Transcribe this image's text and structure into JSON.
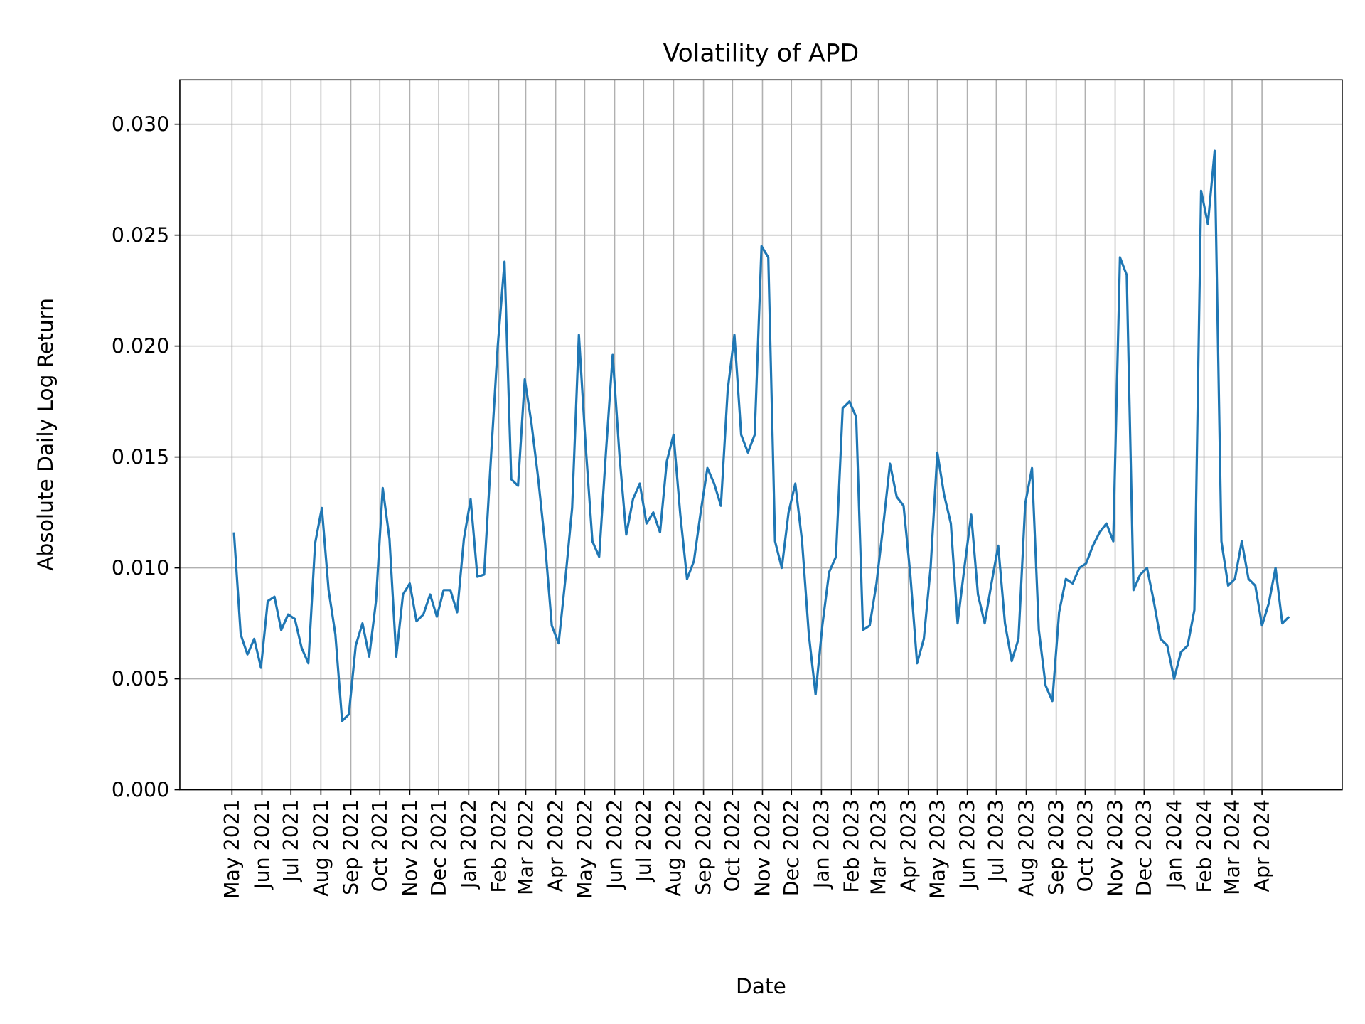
{
  "chart_data": {
    "type": "line",
    "title": "Volatility of APD",
    "xlabel": "Date",
    "ylabel": "Absolute Daily Log Return",
    "ylim": [
      0,
      0.032
    ],
    "xlim": [
      "2021-03-08",
      "2024-06-23"
    ],
    "grid": true,
    "line_color": "#1f77b4",
    "yticks": [
      0.0,
      0.005,
      0.01,
      0.015,
      0.02,
      0.025,
      0.03
    ],
    "ytick_labels": [
      "0.000",
      "0.005",
      "0.010",
      "0.015",
      "0.020",
      "0.025",
      "0.030"
    ],
    "xticks": [
      "2021-05-01",
      "2021-06-01",
      "2021-07-01",
      "2021-08-01",
      "2021-09-01",
      "2021-10-01",
      "2021-11-01",
      "2021-12-01",
      "2022-01-01",
      "2022-02-01",
      "2022-03-01",
      "2022-04-01",
      "2022-05-01",
      "2022-06-01",
      "2022-07-01",
      "2022-08-01",
      "2022-09-01",
      "2022-10-01",
      "2022-11-01",
      "2022-12-01",
      "2023-01-01",
      "2023-02-01",
      "2023-03-01",
      "2023-04-01",
      "2023-05-01",
      "2023-06-01",
      "2023-07-01",
      "2023-08-01",
      "2023-09-01",
      "2023-10-01",
      "2023-11-01",
      "2023-12-01",
      "2024-01-01",
      "2024-02-01",
      "2024-03-01",
      "2024-04-01"
    ],
    "xtick_labels": [
      "May 2021",
      "Jun 2021",
      "Jul 2021",
      "Aug 2021",
      "Sep 2021",
      "Oct 2021",
      "Nov 2021",
      "Dec 2021",
      "Jan 2022",
      "Feb 2022",
      "Mar 2022",
      "Apr 2022",
      "May 2022",
      "Jun 2022",
      "Jul 2022",
      "Aug 2022",
      "Sep 2022",
      "Oct 2022",
      "Nov 2022",
      "Dec 2022",
      "Jan 2023",
      "Feb 2023",
      "Mar 2023",
      "Apr 2023",
      "May 2023",
      "Jun 2023",
      "Jul 2023",
      "Aug 2023",
      "Sep 2023",
      "Oct 2023",
      "Nov 2023",
      "Dec 2023",
      "Jan 2024",
      "Feb 2024",
      "Mar 2024",
      "Apr 2024"
    ],
    "series": [
      {
        "x": [
          "2021-05-03",
          "2021-05-10",
          "2021-05-17",
          "2021-05-24",
          "2021-05-31",
          "2021-06-07",
          "2021-06-14",
          "2021-06-21",
          "2021-06-28",
          "2021-07-05",
          "2021-07-12",
          "2021-07-19",
          "2021-07-26",
          "2021-08-02",
          "2021-08-09",
          "2021-08-16",
          "2021-08-23",
          "2021-08-30",
          "2021-09-06",
          "2021-09-13",
          "2021-09-20",
          "2021-09-27",
          "2021-10-04",
          "2021-10-11",
          "2021-10-18",
          "2021-10-25",
          "2021-11-01",
          "2021-11-08",
          "2021-11-15",
          "2021-11-22",
          "2021-11-29",
          "2021-12-06",
          "2021-12-13",
          "2021-12-20",
          "2021-12-27",
          "2022-01-03",
          "2022-01-10",
          "2022-01-17",
          "2022-01-24",
          "2022-01-31",
          "2022-02-07",
          "2022-02-14",
          "2022-02-21",
          "2022-02-28",
          "2022-03-07",
          "2022-03-14",
          "2022-03-21",
          "2022-03-28",
          "2022-04-04",
          "2022-04-11",
          "2022-04-18",
          "2022-04-25",
          "2022-05-02",
          "2022-05-09",
          "2022-05-16",
          "2022-05-23",
          "2022-05-30",
          "2022-06-06",
          "2022-06-13",
          "2022-06-20",
          "2022-06-27",
          "2022-07-04",
          "2022-07-11",
          "2022-07-18",
          "2022-07-25",
          "2022-08-01",
          "2022-08-08",
          "2022-08-15",
          "2022-08-22",
          "2022-08-29",
          "2022-09-05",
          "2022-09-12",
          "2022-09-19",
          "2022-09-26",
          "2022-10-03",
          "2022-10-10",
          "2022-10-17",
          "2022-10-24",
          "2022-10-31",
          "2022-11-07",
          "2022-11-14",
          "2022-11-21",
          "2022-11-28",
          "2022-12-05",
          "2022-12-12",
          "2022-12-19",
          "2022-12-26",
          "2023-01-02",
          "2023-01-09",
          "2023-01-16",
          "2023-01-23",
          "2023-01-30",
          "2023-02-06",
          "2023-02-13",
          "2023-02-20",
          "2023-02-27",
          "2023-03-06",
          "2023-03-13",
          "2023-03-20",
          "2023-03-27",
          "2023-04-03",
          "2023-04-10",
          "2023-04-17",
          "2023-04-24",
          "2023-05-01",
          "2023-05-08",
          "2023-05-15",
          "2023-05-22",
          "2023-05-29",
          "2023-06-05",
          "2023-06-12",
          "2023-06-19",
          "2023-06-26",
          "2023-07-03",
          "2023-07-10",
          "2023-07-17",
          "2023-07-24",
          "2023-07-31",
          "2023-08-07",
          "2023-08-14",
          "2023-08-21",
          "2023-08-28",
          "2023-09-04",
          "2023-09-11",
          "2023-09-18",
          "2023-09-25",
          "2023-10-02",
          "2023-10-09",
          "2023-10-16",
          "2023-10-23",
          "2023-10-30",
          "2023-11-06",
          "2023-11-13",
          "2023-11-20",
          "2023-11-27",
          "2023-12-04",
          "2023-12-11",
          "2023-12-18",
          "2023-12-25",
          "2024-01-01",
          "2024-01-08",
          "2024-01-15",
          "2024-01-22",
          "2024-01-29",
          "2024-02-05",
          "2024-02-12",
          "2024-02-19",
          "2024-02-26",
          "2024-03-04",
          "2024-03-11",
          "2024-03-18",
          "2024-03-25",
          "2024-04-01",
          "2024-04-08",
          "2024-04-15",
          "2024-04-22",
          "2024-04-29"
        ],
        "y": [
          0.0116,
          0.007,
          0.0061,
          0.0068,
          0.0055,
          0.0085,
          0.0087,
          0.0072,
          0.0079,
          0.0077,
          0.0064,
          0.0057,
          0.0111,
          0.0127,
          0.009,
          0.007,
          0.0031,
          0.0034,
          0.0065,
          0.0075,
          0.006,
          0.0085,
          0.0136,
          0.0113,
          0.006,
          0.0088,
          0.0093,
          0.0076,
          0.0079,
          0.0088,
          0.0078,
          0.009,
          0.009,
          0.008,
          0.0113,
          0.0131,
          0.0096,
          0.0097,
          0.015,
          0.02,
          0.0238,
          0.014,
          0.0137,
          0.0185,
          0.0165,
          0.014,
          0.0111,
          0.0074,
          0.0066,
          0.0095,
          0.0127,
          0.0205,
          0.0155,
          0.0112,
          0.0105,
          0.0152,
          0.0196,
          0.0151,
          0.0115,
          0.0131,
          0.0138,
          0.012,
          0.0125,
          0.0116,
          0.0148,
          0.016,
          0.0124,
          0.0095,
          0.0103,
          0.0125,
          0.0145,
          0.0138,
          0.0128,
          0.018,
          0.0205,
          0.016,
          0.0152,
          0.016,
          0.0245,
          0.024,
          0.0112,
          0.01,
          0.0125,
          0.0138,
          0.0112,
          0.007,
          0.0043,
          0.0074,
          0.0098,
          0.0105,
          0.0172,
          0.0175,
          0.0168,
          0.0072,
          0.0074,
          0.0093,
          0.0119,
          0.0147,
          0.0132,
          0.0128,
          0.0097,
          0.0057,
          0.0068,
          0.01,
          0.0152,
          0.0133,
          0.012,
          0.0075,
          0.01,
          0.0124,
          0.0088,
          0.0075,
          0.0093,
          0.011,
          0.0075,
          0.0058,
          0.0068,
          0.0129,
          0.0145,
          0.0072,
          0.0047,
          0.004,
          0.008,
          0.0095,
          0.0093,
          0.01,
          0.0102,
          0.011,
          0.0116,
          0.012,
          0.0112,
          0.024,
          0.0232,
          0.009,
          0.0097,
          0.01,
          0.0085,
          0.0068,
          0.0065,
          0.005,
          0.0062,
          0.0065,
          0.0081,
          0.027,
          0.0255,
          0.0288,
          0.0112,
          0.0092,
          0.0095,
          0.0112,
          0.0095,
          0.0092,
          0.0074,
          0.0084,
          0.01,
          0.0075,
          0.0078
        ]
      }
    ]
  }
}
